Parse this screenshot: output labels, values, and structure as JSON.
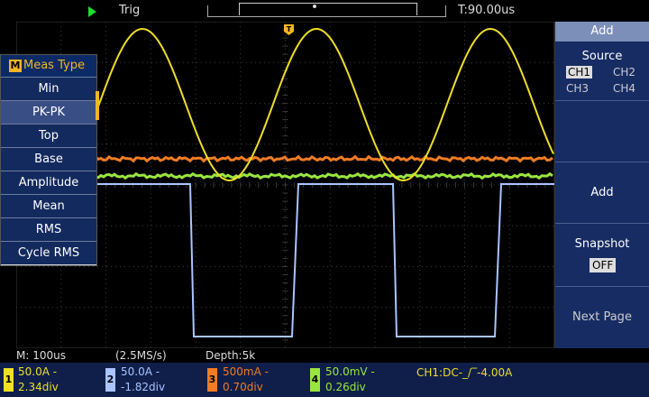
{
  "top_bar": {
    "trigger_status": "Trig",
    "time_position": "T:90.00us",
    "trigger_marker": "T"
  },
  "meas_menu": {
    "badge": "M",
    "title": "Meas Type",
    "items": [
      "Min",
      "PK-PK",
      "Top",
      "Base",
      "Amplitude",
      "Mean",
      "RMS",
      "Cycle RMS"
    ],
    "selected": "PK-PK"
  },
  "right_menu": {
    "header": "Add",
    "source_label": "Source",
    "sources": [
      "CH1",
      "CH2",
      "CH3",
      "CH4"
    ],
    "selected_source": "CH1",
    "add_label": "Add",
    "snapshot_label": "Snapshot",
    "snapshot_value": "OFF",
    "next_page_label": "Next Page"
  },
  "acquisition": {
    "timebase": "M: 100us",
    "sample_rate": "(2.5MS/s)",
    "depth": "Depth:5k"
  },
  "channels": [
    {
      "badge": "1",
      "scale": "50.0A  -",
      "offset": "2.34div",
      "color": "#f0de2a"
    },
    {
      "badge": "2",
      "scale": "50.0A  -",
      "offset": "-1.82div",
      "color": "#aac4ff"
    },
    {
      "badge": "3",
      "scale": "500mA  -",
      "offset": "0.70div",
      "color": "#f07c24"
    },
    {
      "badge": "4",
      "scale": "50.0mV -",
      "offset": "0.26div",
      "color": "#9ae640"
    }
  ],
  "trigger_info": "CH1:DC-_/‾-4.00A",
  "colors": {
    "grid": "#3a3a3a",
    "menu_bg": "#172c63",
    "accent": "#f2b624"
  }
}
